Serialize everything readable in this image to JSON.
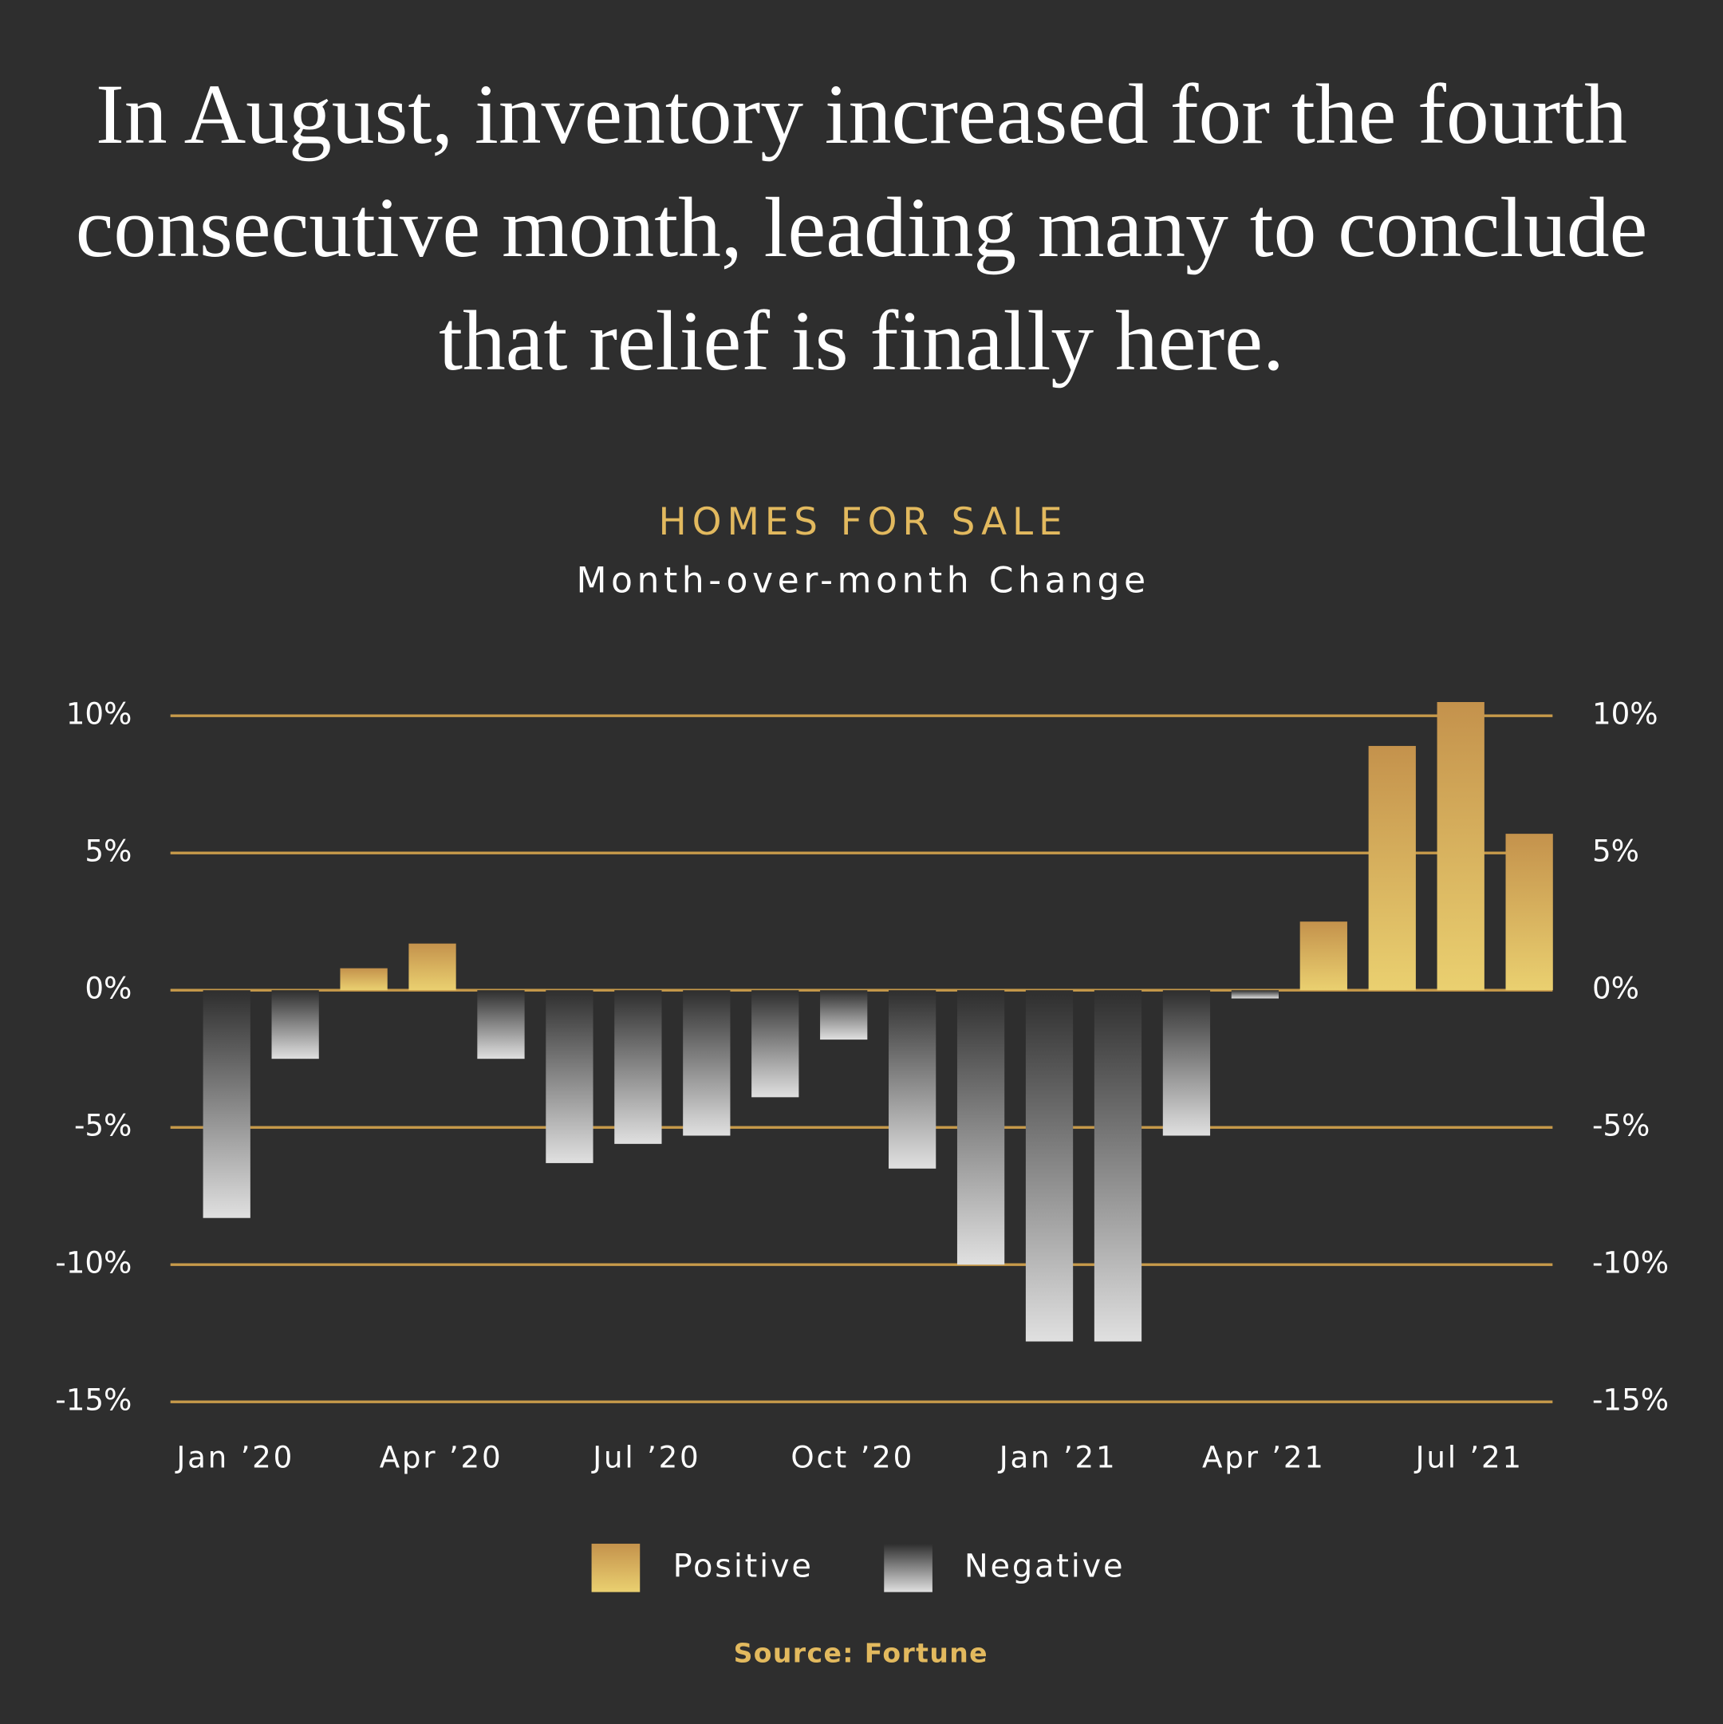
{
  "chart_data": {
    "type": "bar",
    "title": "In August, inventory increased for the fourth consecutive month, leading many to conclude that relief is finally here.",
    "chart_title": "HOMES FOR SALE",
    "subtitle": "Month-over-month Change",
    "categories": [
      "Jan ’20",
      null,
      null,
      "Apr ’20",
      null,
      null,
      "Jul ’20",
      null,
      null,
      "Oct ’20",
      null,
      null,
      "Jan ’21",
      null,
      null,
      "Apr ’21",
      null,
      null,
      "Jul ’21",
      null
    ],
    "values": [
      -8.3,
      -2.5,
      0.8,
      1.7,
      -2.5,
      -6.3,
      -5.6,
      -5.3,
      -3.9,
      -1.8,
      -6.5,
      -10,
      -12.8,
      -12.8,
      -5.3,
      -0.3,
      2.5,
      8.9,
      10.5,
      5.7
    ],
    "legend": [
      {
        "name": "Positive",
        "color": "#d9b15e"
      },
      {
        "name": "Negative",
        "color": "#9a9a9a"
      }
    ],
    "ylim": [
      -15,
      10
    ],
    "yticks": [
      {
        "value": 10,
        "label": "10%"
      },
      {
        "value": 5,
        "label": "5%"
      },
      {
        "value": 0,
        "label": "0%"
      },
      {
        "value": -5,
        "label": "-5%"
      },
      {
        "value": -10,
        "label": "-10%"
      },
      {
        "value": -15,
        "label": "-15%"
      }
    ],
    "grid": true,
    "grid_color": "#c79a4a",
    "source": "Source: Fortune"
  }
}
